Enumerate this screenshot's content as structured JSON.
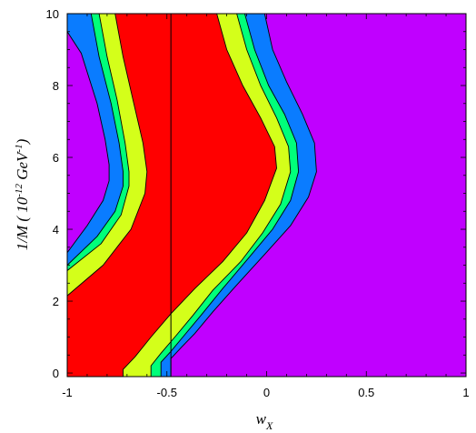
{
  "chart_data": {
    "type": "contour",
    "title": "",
    "xlabel": "w",
    "xlabel_subscript": "X",
    "ylabel_parts": {
      "base": "1/M ( 10",
      "exp1": "-12",
      "mid": " GeV",
      "exp2": "-1",
      "end": ")"
    },
    "xlim": [
      -1,
      1
    ],
    "ylim": [
      -0.1,
      10
    ],
    "x_ticks": [
      -1,
      -0.5,
      0,
      0.5,
      1
    ],
    "x_tick_labels": [
      "-1",
      "-0.5",
      "0",
      "0.5",
      "1"
    ],
    "y_ticks": [
      0,
      2,
      4,
      6,
      8,
      10
    ],
    "y_tick_labels": [
      "0",
      "2",
      "4",
      "6",
      "8",
      "10"
    ],
    "vertical_line_x": -0.48,
    "colors": {
      "outer": "#c000ff",
      "level1": "#0a7cff",
      "level2": "#00ff7a",
      "level3": "#d4ff1a",
      "inner": "#ff0000"
    },
    "boundaries": {
      "left": [
        {
          "name": "left_blue",
          "points": [
            [
              -1,
              3.35
            ],
            [
              -0.9,
              4.1
            ],
            [
              -0.82,
              4.8
            ],
            [
              -0.79,
              5.35
            ],
            [
              -0.79,
              5.8
            ],
            [
              -0.81,
              6.5
            ],
            [
              -0.85,
              7.5
            ],
            [
              -0.93,
              8.9
            ],
            [
              -1,
              9.5
            ]
          ]
        },
        {
          "name": "left_green",
          "points": [
            [
              -1,
              3.0
            ],
            [
              -0.85,
              3.8
            ],
            [
              -0.76,
              4.5
            ],
            [
              -0.72,
              5.2
            ],
            [
              -0.72,
              5.6
            ],
            [
              -0.74,
              6.4
            ],
            [
              -0.78,
              7.5
            ],
            [
              -0.84,
              8.8
            ],
            [
              -0.88,
              10
            ]
          ]
        },
        {
          "name": "left_yellow",
          "points": [
            [
              -1,
              2.85
            ],
            [
              -0.83,
              3.6
            ],
            [
              -0.73,
              4.4
            ],
            [
              -0.69,
              5.2
            ],
            [
              -0.69,
              5.6
            ],
            [
              -0.71,
              6.4
            ],
            [
              -0.75,
              7.6
            ],
            [
              -0.8,
              8.8
            ],
            [
              -0.84,
              10
            ]
          ]
        },
        {
          "name": "left_red",
          "points": [
            [
              -1,
              2.15
            ],
            [
              -0.82,
              3.0
            ],
            [
              -0.68,
              4.0
            ],
            [
              -0.61,
              5.0
            ],
            [
              -0.6,
              5.6
            ],
            [
              -0.62,
              6.4
            ],
            [
              -0.67,
              7.6
            ],
            [
              -0.72,
              8.8
            ],
            [
              -0.76,
              10
            ]
          ]
        }
      ],
      "right": [
        {
          "name": "right_red",
          "points": [
            [
              -0.72,
              -0.1
            ],
            [
              -0.72,
              0.1
            ],
            [
              -0.66,
              0.45
            ],
            [
              -0.58,
              1.0
            ],
            [
              -0.48,
              1.65
            ],
            [
              -0.36,
              2.35
            ],
            [
              -0.22,
              3.1
            ],
            [
              -0.1,
              3.9
            ],
            [
              -0.01,
              4.8
            ],
            [
              0.05,
              5.7
            ],
            [
              0.04,
              6.3
            ],
            [
              -0.03,
              7.1
            ],
            [
              -0.12,
              8.0
            ],
            [
              -0.2,
              9.0
            ],
            [
              -0.25,
              10
            ]
          ]
        },
        {
          "name": "right_yellow",
          "points": [
            [
              -0.58,
              -0.1
            ],
            [
              -0.58,
              0.2
            ],
            [
              -0.53,
              0.55
            ],
            [
              -0.46,
              1.0
            ],
            [
              -0.37,
              1.6
            ],
            [
              -0.27,
              2.3
            ],
            [
              -0.13,
              3.1
            ],
            [
              -0.02,
              3.9
            ],
            [
              0.07,
              4.7
            ],
            [
              0.12,
              5.6
            ],
            [
              0.11,
              6.3
            ],
            [
              0.05,
              7.1
            ],
            [
              -0.03,
              8.0
            ],
            [
              -0.1,
              9.0
            ],
            [
              -0.15,
              10
            ]
          ]
        },
        {
          "name": "right_green",
          "points": [
            [
              -0.53,
              -0.1
            ],
            [
              -0.53,
              0.3
            ],
            [
              -0.48,
              0.6
            ],
            [
              -0.42,
              1.0
            ],
            [
              -0.33,
              1.6
            ],
            [
              -0.22,
              2.35
            ],
            [
              -0.09,
              3.2
            ],
            [
              0.03,
              4.0
            ],
            [
              0.12,
              4.8
            ],
            [
              0.16,
              5.6
            ],
            [
              0.15,
              6.4
            ],
            [
              0.09,
              7.2
            ],
            [
              0.01,
              8.0
            ],
            [
              -0.06,
              9.0
            ],
            [
              -0.11,
              10
            ]
          ]
        },
        {
          "name": "right_blue",
          "points": [
            [
              -0.48,
              -0.1
            ],
            [
              -0.48,
              0.4
            ],
            [
              -0.43,
              0.7
            ],
            [
              -0.36,
              1.1
            ],
            [
              -0.27,
              1.7
            ],
            [
              -0.15,
              2.45
            ],
            [
              -0.01,
              3.3
            ],
            [
              0.12,
              4.1
            ],
            [
              0.21,
              4.9
            ],
            [
              0.25,
              5.6
            ],
            [
              0.24,
              6.4
            ],
            [
              0.18,
              7.2
            ],
            [
              0.1,
              8.1
            ],
            [
              0.03,
              9.0
            ],
            [
              -0.01,
              10
            ]
          ]
        }
      ]
    }
  }
}
